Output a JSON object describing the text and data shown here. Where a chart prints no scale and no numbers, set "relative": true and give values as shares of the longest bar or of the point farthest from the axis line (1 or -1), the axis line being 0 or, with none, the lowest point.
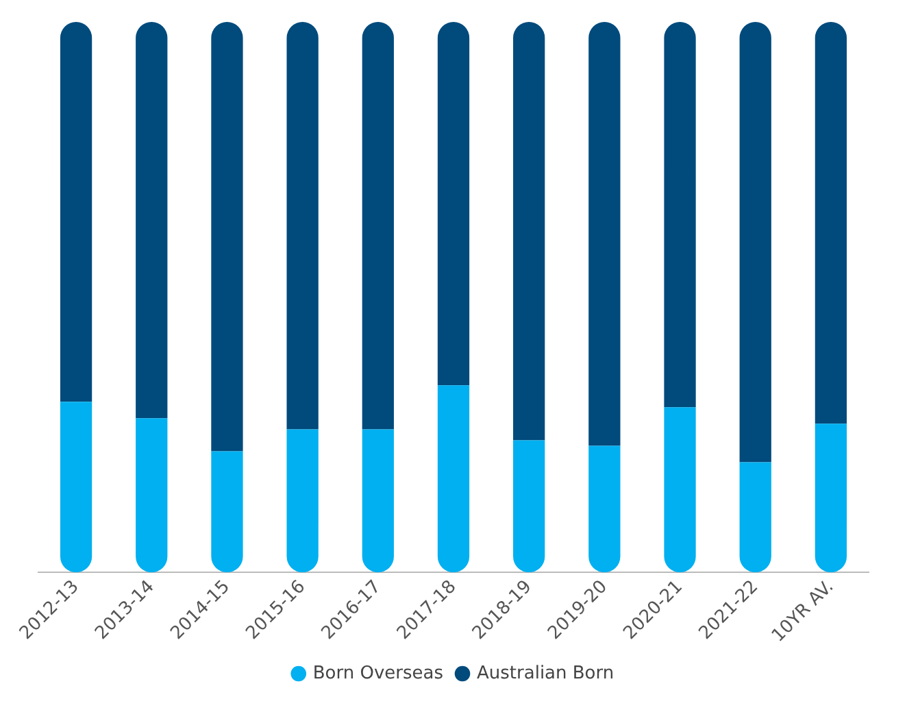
{
  "chart_data": {
    "type": "bar",
    "stacked": true,
    "relative": true,
    "legend": "bottom",
    "grid": false,
    "categories": [
      "2012-13",
      "2013-14",
      "2014-15",
      "2015-16",
      "2016-17",
      "2017-18",
      "2018-19",
      "2019-20",
      "2020-21",
      "2021-22",
      "10YR AV."
    ],
    "series": [
      {
        "name": "Born Overseas",
        "color": "#00b0f0",
        "values": [
          0.31,
          0.28,
          0.22,
          0.26,
          0.26,
          0.34,
          0.24,
          0.23,
          0.3,
          0.2,
          0.27
        ]
      },
      {
        "name": "Australian Born",
        "color": "#004a7c",
        "values": [
          0.69,
          0.72,
          0.78,
          0.74,
          0.74,
          0.66,
          0.76,
          0.77,
          0.7,
          0.8,
          0.73
        ]
      }
    ]
  }
}
